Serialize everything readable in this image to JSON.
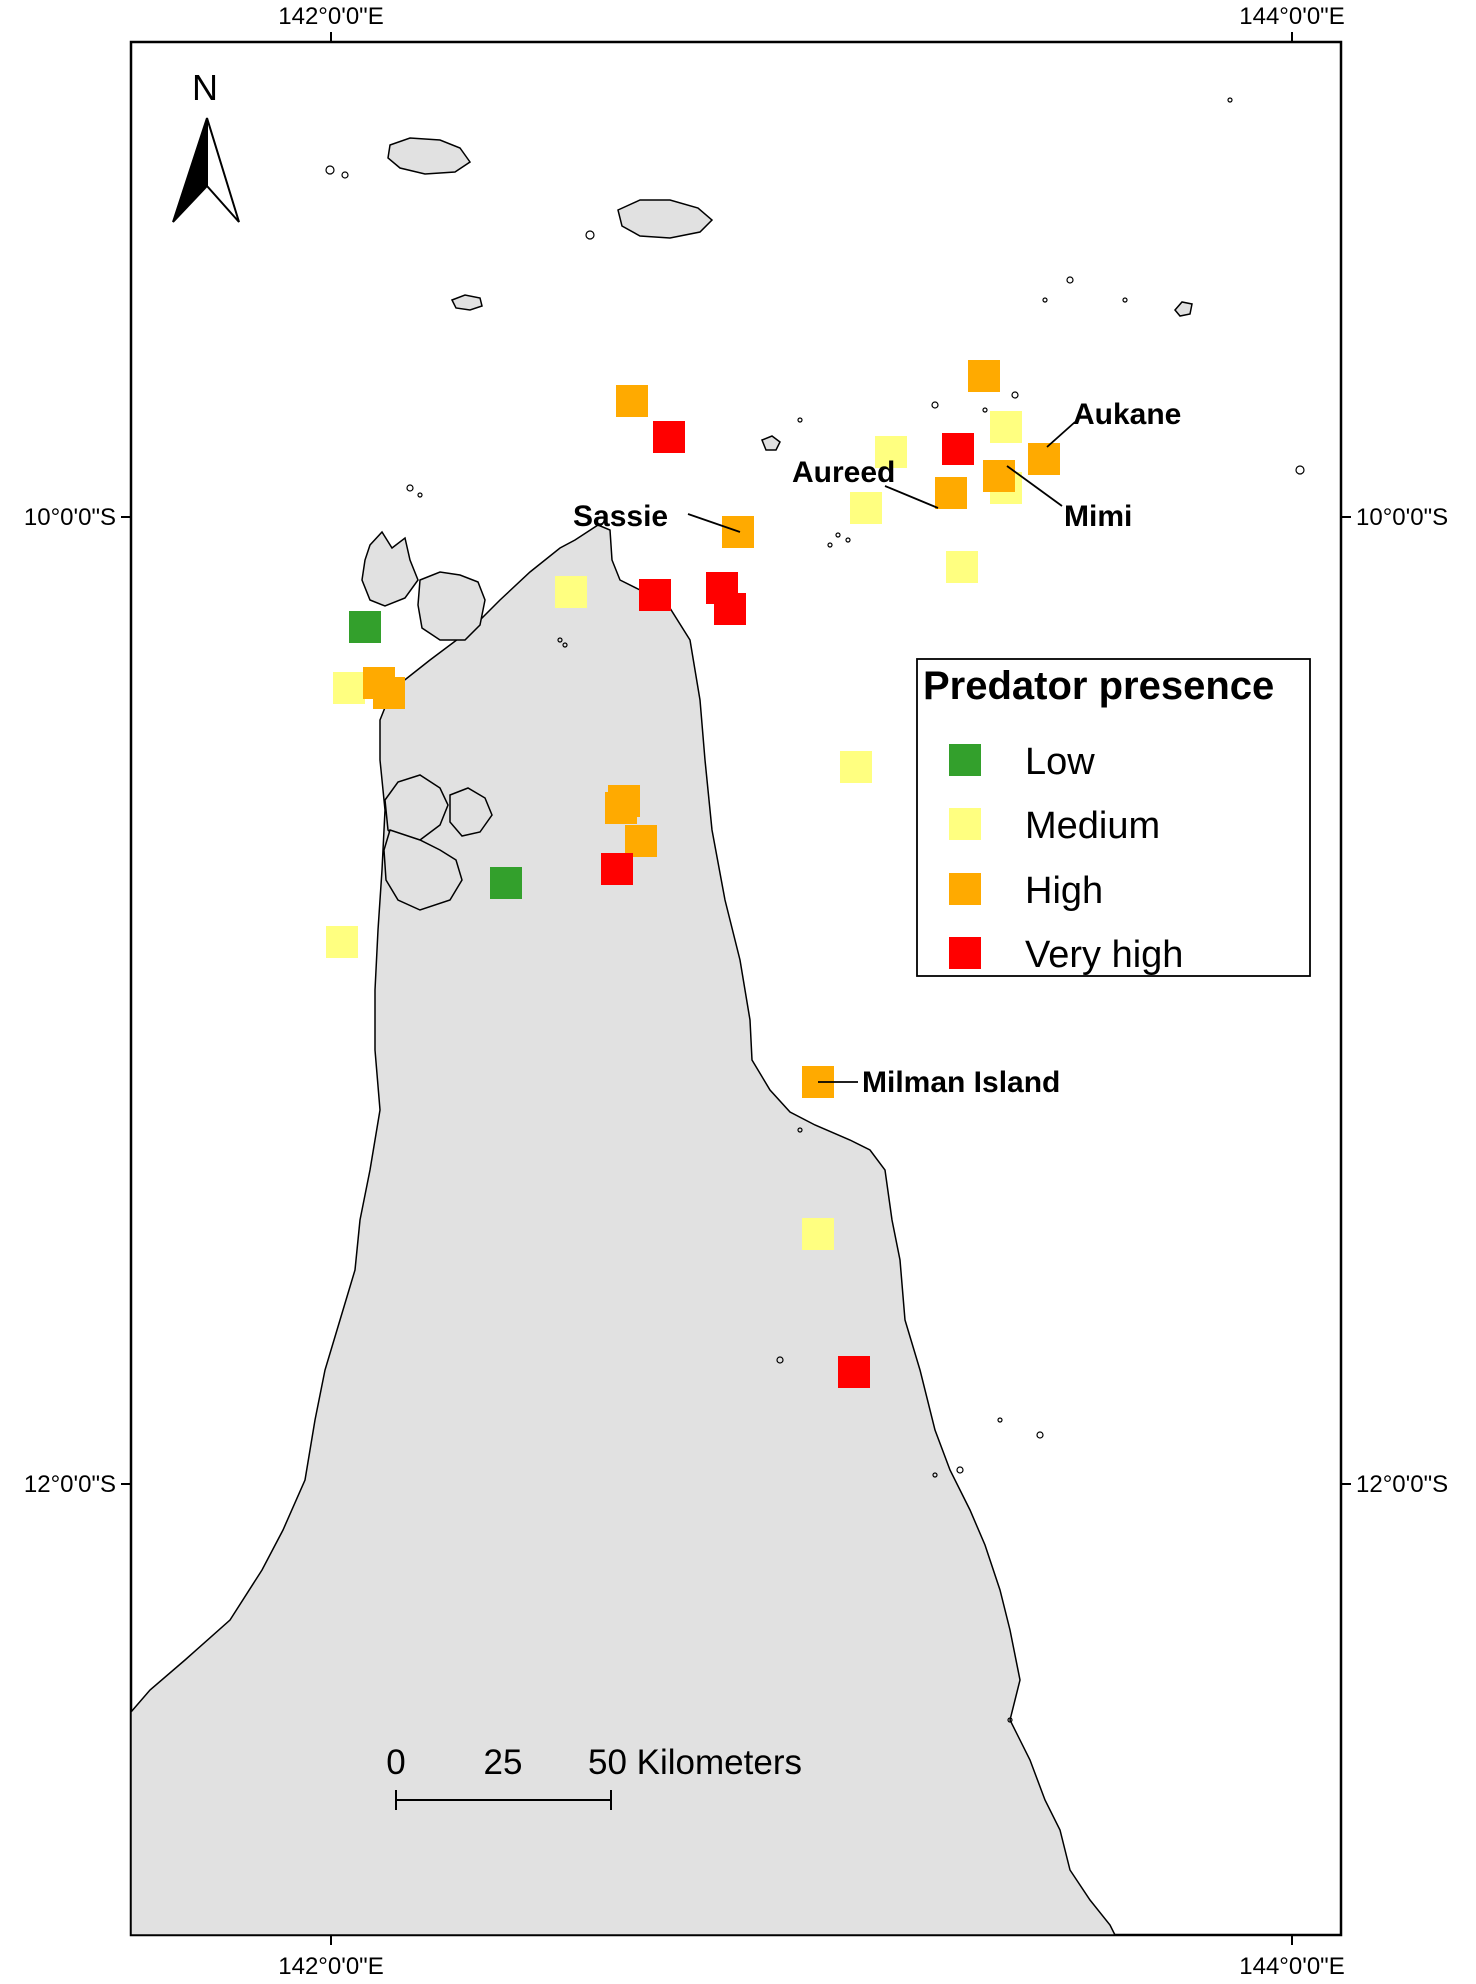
{
  "graticule": {
    "longitudes": [
      "142°0'0\"E",
      "144°0'0\"E"
    ],
    "latitudes": [
      "10°0'0\"S",
      "12°0'0\"S"
    ]
  },
  "north_arrow": {
    "label": "N"
  },
  "legend": {
    "title": "Predator presence",
    "items": [
      {
        "level": "low",
        "label": "Low",
        "color": "#33a02c"
      },
      {
        "level": "medium",
        "label": "Medium",
        "color": "#ffff80"
      },
      {
        "level": "high",
        "label": "High",
        "color": "#ffaa00"
      },
      {
        "level": "very_high",
        "label": "Very high",
        "color": "#ff0000"
      }
    ]
  },
  "scale_bar": {
    "ticks": [
      "0",
      "25",
      "50 Kilometers"
    ]
  },
  "site_labels": [
    "Aukane",
    "Aureed",
    "Mimi",
    "Sassie",
    "Milman Island"
  ],
  "colors": {
    "land": "#e1e1e1",
    "water": "#ffffff",
    "outline": "#000000"
  }
}
